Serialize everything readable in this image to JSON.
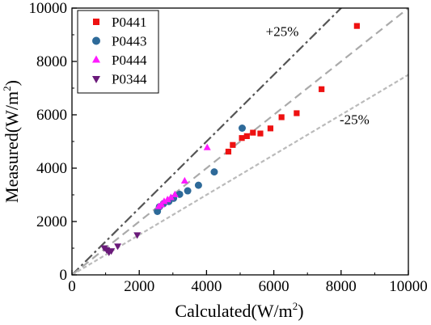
{
  "chart_data": {
    "type": "scatter",
    "xlabel_main": "Calculated(W/m",
    "xlabel_sup": "2",
    "xlabel_end": ")",
    "ylabel_main": "Measured(W/m",
    "ylabel_sup": "2",
    "ylabel_end": ")",
    "xlim": [
      0,
      10000
    ],
    "ylim": [
      0,
      10000
    ],
    "xticks": [
      0,
      2000,
      4000,
      6000,
      8000,
      10000
    ],
    "yticks": [
      0,
      2000,
      4000,
      6000,
      8000,
      10000
    ],
    "grid": false,
    "legend_position": "top-left",
    "reference_lines": [
      {
        "slope": 1.25,
        "label": "+25%",
        "style": "dash-dot",
        "color": "#555555"
      },
      {
        "slope": 1.0,
        "label": "",
        "style": "dashed",
        "color": "#aaaaaa"
      },
      {
        "slope": 0.75,
        "label": "-25%",
        "style": "dotted",
        "color": "#bbbbbb"
      }
    ],
    "series": [
      {
        "name": "P0441",
        "marker": "square",
        "color": "#ee1111",
        "points": [
          [
            4650,
            4620
          ],
          [
            4780,
            4870
          ],
          [
            5050,
            5130
          ],
          [
            5200,
            5200
          ],
          [
            5380,
            5330
          ],
          [
            5600,
            5300
          ],
          [
            5900,
            5490
          ],
          [
            6230,
            5910
          ],
          [
            6680,
            6060
          ],
          [
            7420,
            6960
          ],
          [
            8470,
            9330
          ]
        ]
      },
      {
        "name": "P0443",
        "marker": "circle",
        "color": "#2e6a99",
        "points": [
          [
            2540,
            2380
          ],
          [
            2600,
            2550
          ],
          [
            2720,
            2670
          ],
          [
            2880,
            2750
          ],
          [
            3020,
            2870
          ],
          [
            3200,
            3020
          ],
          [
            3440,
            3150
          ],
          [
            3760,
            3360
          ],
          [
            4230,
            3860
          ],
          [
            5060,
            5500
          ]
        ]
      },
      {
        "name": "P0444",
        "marker": "triangle-up",
        "color": "#ff1aff",
        "points": [
          [
            2580,
            2560
          ],
          [
            2660,
            2630
          ],
          [
            2740,
            2750
          ],
          [
            2840,
            2820
          ],
          [
            2940,
            2900
          ],
          [
            3060,
            3010
          ],
          [
            3350,
            3520
          ],
          [
            4020,
            4770
          ]
        ]
      },
      {
        "name": "P0344",
        "marker": "triangle-down",
        "color": "#6a1a7a",
        "points": [
          [
            960,
            1010
          ],
          [
            1030,
            940
          ],
          [
            1100,
            850
          ],
          [
            1170,
            900
          ],
          [
            1360,
            1080
          ],
          [
            1940,
            1500
          ]
        ]
      }
    ],
    "annotations": [
      {
        "text": "+25%",
        "x": 6250,
        "y": 8950
      },
      {
        "text": "-25%",
        "x": 8400,
        "y": 5650
      }
    ]
  }
}
